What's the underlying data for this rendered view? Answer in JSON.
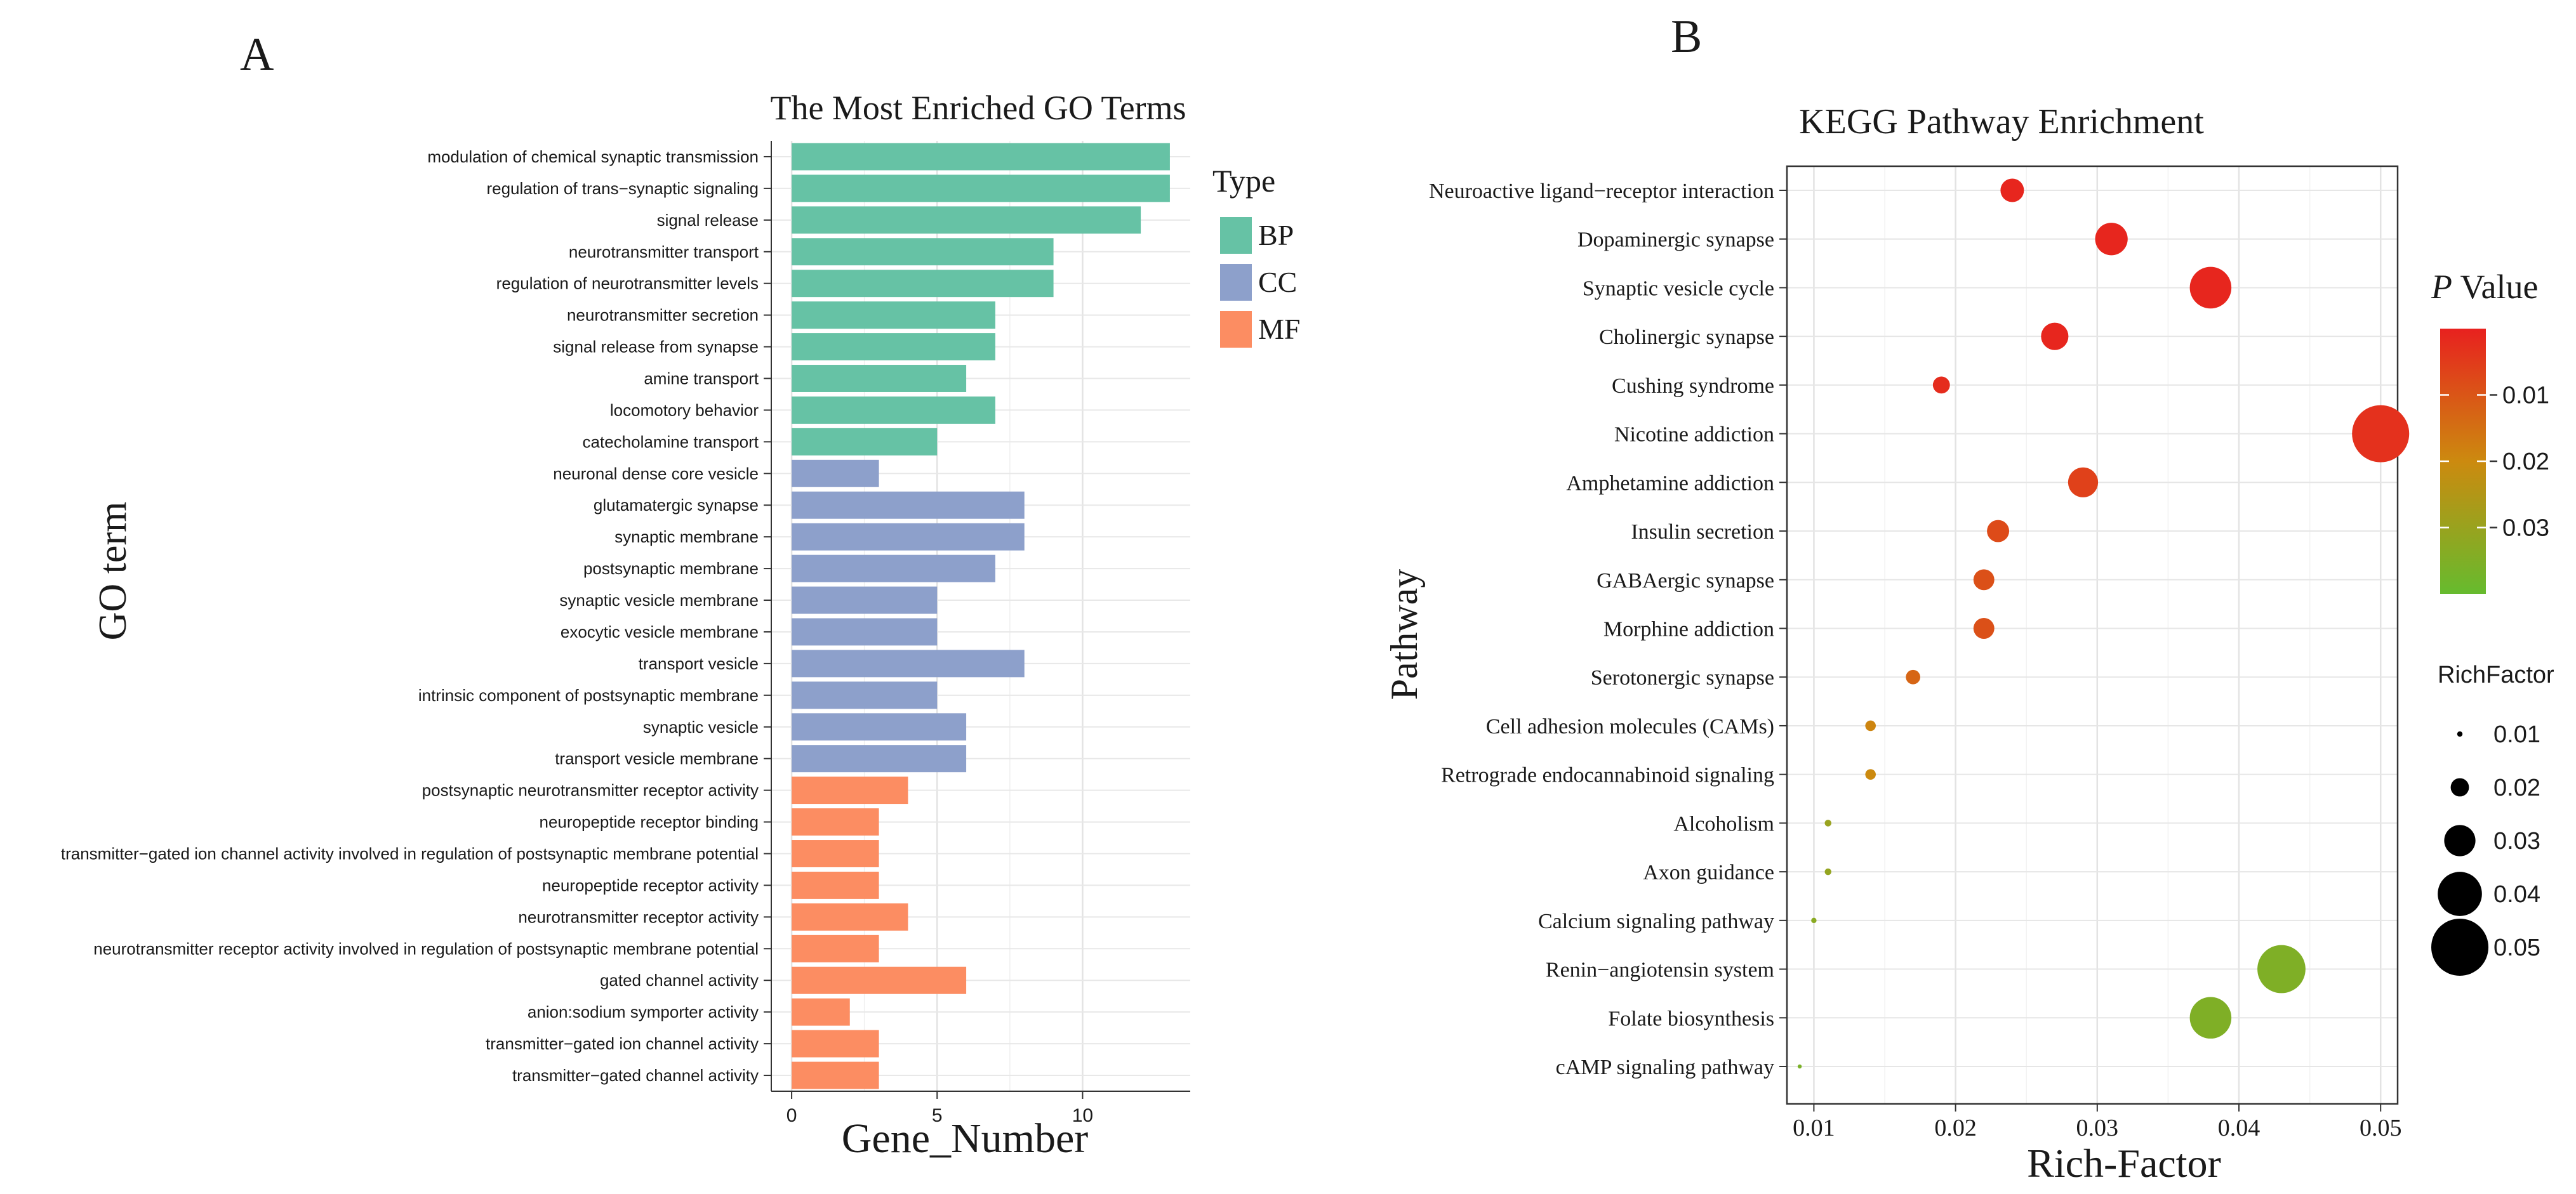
{
  "panel_labels": {
    "a": "A",
    "b": "B"
  },
  "chart_data": [
    {
      "type": "bar",
      "orientation": "horizontal",
      "title": "The Most Enriched GO Terms",
      "xlabel": "Gene_Number",
      "ylabel": "GO term",
      "xlim": [
        -0.7,
        13.7
      ],
      "xticks": [
        0,
        5,
        10
      ],
      "grid": true,
      "legend_title": "Type",
      "legend_position": "right",
      "groups": [
        {
          "name": "BP",
          "color": "#66c2a5"
        },
        {
          "name": "CC",
          "color": "#8da0cb"
        },
        {
          "name": "MF",
          "color": "#fc8d62"
        }
      ],
      "bars": [
        {
          "label": "modulation of chemical synaptic transmission",
          "value": 13,
          "type": "BP"
        },
        {
          "label": "regulation of trans−synaptic signaling",
          "value": 13,
          "type": "BP"
        },
        {
          "label": "signal release",
          "value": 12,
          "type": "BP"
        },
        {
          "label": "neurotransmitter transport",
          "value": 9,
          "type": "BP"
        },
        {
          "label": "regulation of neurotransmitter levels",
          "value": 9,
          "type": "BP"
        },
        {
          "label": "neurotransmitter secretion",
          "value": 7,
          "type": "BP"
        },
        {
          "label": "signal release from synapse",
          "value": 7,
          "type": "BP"
        },
        {
          "label": "amine transport",
          "value": 6,
          "type": "BP"
        },
        {
          "label": "locomotory behavior",
          "value": 7,
          "type": "BP"
        },
        {
          "label": "catecholamine transport",
          "value": 5,
          "type": "BP"
        },
        {
          "label": "neuronal dense core vesicle",
          "value": 3,
          "type": "CC"
        },
        {
          "label": "glutamatergic synapse",
          "value": 8,
          "type": "CC"
        },
        {
          "label": "synaptic membrane",
          "value": 8,
          "type": "CC"
        },
        {
          "label": "postsynaptic membrane",
          "value": 7,
          "type": "CC"
        },
        {
          "label": "synaptic vesicle membrane",
          "value": 5,
          "type": "CC"
        },
        {
          "label": "exocytic vesicle membrane",
          "value": 5,
          "type": "CC"
        },
        {
          "label": "transport vesicle",
          "value": 8,
          "type": "CC"
        },
        {
          "label": "intrinsic component of postsynaptic membrane",
          "value": 5,
          "type": "CC"
        },
        {
          "label": "synaptic vesicle",
          "value": 6,
          "type": "CC"
        },
        {
          "label": "transport vesicle membrane",
          "value": 6,
          "type": "CC"
        },
        {
          "label": "postsynaptic neurotransmitter receptor activity",
          "value": 4,
          "type": "MF"
        },
        {
          "label": "neuropeptide receptor binding",
          "value": 3,
          "type": "MF"
        },
        {
          "label": "transmitter−gated ion channel activity involved in regulation of postsynaptic membrane potential",
          "value": 3,
          "type": "MF"
        },
        {
          "label": "neuropeptide receptor activity",
          "value": 3,
          "type": "MF"
        },
        {
          "label": "neurotransmitter receptor activity",
          "value": 4,
          "type": "MF"
        },
        {
          "label": "neurotransmitter receptor activity involved in regulation of postsynaptic membrane potential",
          "value": 3,
          "type": "MF"
        },
        {
          "label": "gated channel activity",
          "value": 6,
          "type": "MF"
        },
        {
          "label": "anion:sodium symporter activity",
          "value": 2,
          "type": "MF"
        },
        {
          "label": "transmitter−gated ion channel activity",
          "value": 3,
          "type": "MF"
        },
        {
          "label": "transmitter−gated channel activity",
          "value": 3,
          "type": "MF"
        }
      ]
    },
    {
      "type": "scatter",
      "title": "KEGG Pathway Enrichment",
      "xlabel": "Rich-Factor",
      "ylabel": "Pathway",
      "xlim": [
        0.0081,
        0.0512
      ],
      "xticks": [
        0.01,
        0.02,
        0.03,
        0.04,
        0.05
      ],
      "xtick_labels": [
        "0.01",
        "0.02",
        "0.03",
        "0.04",
        "0.05"
      ],
      "grid": true,
      "color_legend": {
        "title_italic": "P",
        "title_rest": " Value",
        "range": [
          0.0,
          0.04
        ],
        "low_color": "#e8211f",
        "mid_color": "#cc8a0f",
        "high_color": "#66bb2e",
        "ticks": [
          0.01,
          0.02,
          0.03
        ],
        "tick_labels": [
          "0.01",
          "0.02",
          "0.03"
        ]
      },
      "size_legend": {
        "title": "RichFactor",
        "values": [
          0.01,
          0.02,
          0.03,
          0.04,
          0.05
        ],
        "labels": [
          "0.01",
          "0.02",
          "0.03",
          "0.04",
          "0.05"
        ]
      },
      "points": [
        {
          "pathway": "Neuroactive ligand−receptor interaction",
          "rich_factor": 0.024,
          "p_value": 0.001
        },
        {
          "pathway": "Dopaminergic synapse",
          "rich_factor": 0.031,
          "p_value": 0.001
        },
        {
          "pathway": "Synaptic vesicle cycle",
          "rich_factor": 0.038,
          "p_value": 0.001
        },
        {
          "pathway": "Cholinergic synapse",
          "rich_factor": 0.027,
          "p_value": 0.001
        },
        {
          "pathway": "Cushing syndrome",
          "rich_factor": 0.019,
          "p_value": 0.002
        },
        {
          "pathway": "Nicotine addiction",
          "rich_factor": 0.05,
          "p_value": 0.003
        },
        {
          "pathway": "Amphetamine addiction",
          "rich_factor": 0.029,
          "p_value": 0.006
        },
        {
          "pathway": "Insulin secretion",
          "rich_factor": 0.023,
          "p_value": 0.008
        },
        {
          "pathway": "GABAergic synapse",
          "rich_factor": 0.022,
          "p_value": 0.009
        },
        {
          "pathway": "Morphine addiction",
          "rich_factor": 0.022,
          "p_value": 0.009
        },
        {
          "pathway": "Serotonergic synapse",
          "rich_factor": 0.017,
          "p_value": 0.013
        },
        {
          "pathway": "Cell adhesion molecules (CAMs)",
          "rich_factor": 0.014,
          "p_value": 0.019
        },
        {
          "pathway": "Retrograde endocannabinoid signaling",
          "rich_factor": 0.014,
          "p_value": 0.02
        },
        {
          "pathway": "Alcoholism",
          "rich_factor": 0.011,
          "p_value": 0.03
        },
        {
          "pathway": "Axon guidance",
          "rich_factor": 0.011,
          "p_value": 0.031
        },
        {
          "pathway": "Calcium signaling pathway",
          "rich_factor": 0.01,
          "p_value": 0.033
        },
        {
          "pathway": "Renin−angiotensin system",
          "rich_factor": 0.043,
          "p_value": 0.035
        },
        {
          "pathway": "Folate biosynthesis",
          "rich_factor": 0.038,
          "p_value": 0.035
        },
        {
          "pathway": "cAMP signaling pathway",
          "rich_factor": 0.009,
          "p_value": 0.036
        }
      ]
    }
  ]
}
